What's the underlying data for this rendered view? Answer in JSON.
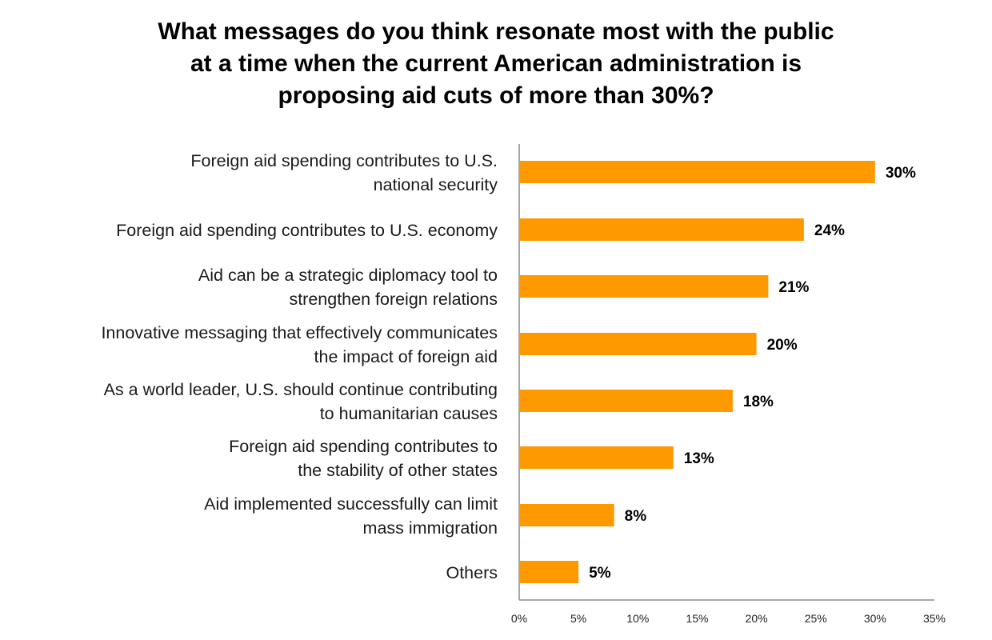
{
  "chart_data": {
    "type": "bar",
    "orientation": "horizontal",
    "title": "What messages do you think resonate most with the public at a time when the current American administration is proposing aid cuts of more than 30%?",
    "title_lines": [
      "What messages do you think resonate most with the public",
      "at a time when the current American administration is",
      "proposing aid cuts of more than 30%?"
    ],
    "categories": [
      [
        "Foreign aid spending contributes to U.S.",
        "national security"
      ],
      [
        "Foreign aid spending contributes to U.S. economy"
      ],
      [
        "Aid can be a strategic diplomacy tool to",
        "strengthen foreign relations"
      ],
      [
        "Innovative messaging that effectively communicates",
        "the impact of foreign aid"
      ],
      [
        "As a world leader, U.S. should continue contributing",
        "to humanitarian causes"
      ],
      [
        "Foreign aid spending contributes to",
        "the stability of other states"
      ],
      [
        "Aid implemented successfully can limit",
        "mass immigration"
      ],
      [
        "Others"
      ]
    ],
    "values": [
      30,
      24,
      21,
      20,
      18,
      13,
      8,
      5
    ],
    "value_labels": [
      "30%",
      "24%",
      "21%",
      "20%",
      "18%",
      "13%",
      "8%",
      "5%"
    ],
    "xlabel": "",
    "ylabel": "",
    "xlim": [
      0,
      35
    ],
    "x_ticks": [
      0,
      5,
      10,
      15,
      20,
      25,
      30,
      35
    ],
    "x_tick_labels": [
      "0%",
      "5%",
      "10%",
      "15%",
      "20%",
      "25%",
      "30%",
      "35%"
    ],
    "grid": false,
    "legend": "none",
    "bar_color": "#FF9900",
    "axis_color": "#8c8c8c"
  }
}
